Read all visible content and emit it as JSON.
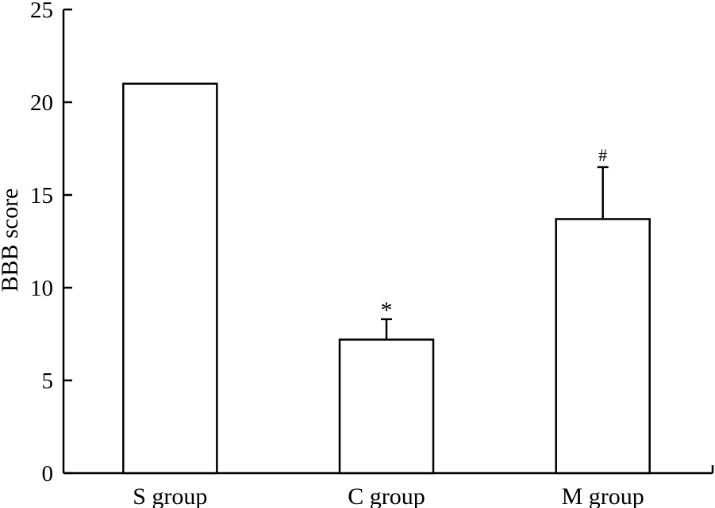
{
  "chart_data": {
    "type": "bar",
    "title": "",
    "xlabel": "",
    "ylabel": "BBB score",
    "ylim": [
      0,
      25
    ],
    "yticks": [
      0,
      5,
      10,
      15,
      20,
      25
    ],
    "grid": false,
    "categories": [
      "S group",
      "C group",
      "M group"
    ],
    "values": [
      21,
      7.2,
      13.7
    ],
    "error": [
      0,
      1.1,
      2.8
    ],
    "annotations": [
      "",
      "*",
      "#"
    ]
  }
}
